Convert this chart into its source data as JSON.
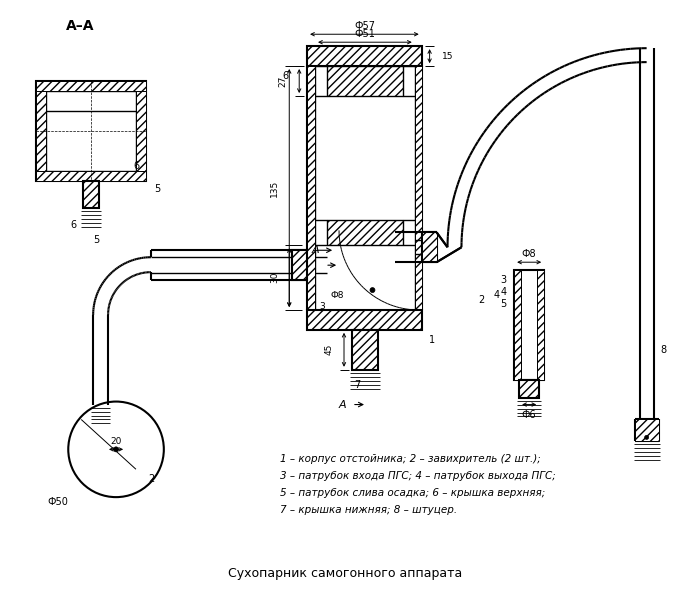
{
  "title": "Сухопарник самогонного аппарата",
  "legend_lines": [
    "1 – корпус отстойника; 2 – завихритель (2 шт.);",
    "3 – патрубок входа ПГС; 4 – патрубок выхода ПГС;",
    "5 – патрубок слива осадка; 6 – крышка верхняя;",
    "7 – крышка нижняя; 8 – штуцер."
  ],
  "bg_color": "#ffffff",
  "line_color": "#000000"
}
